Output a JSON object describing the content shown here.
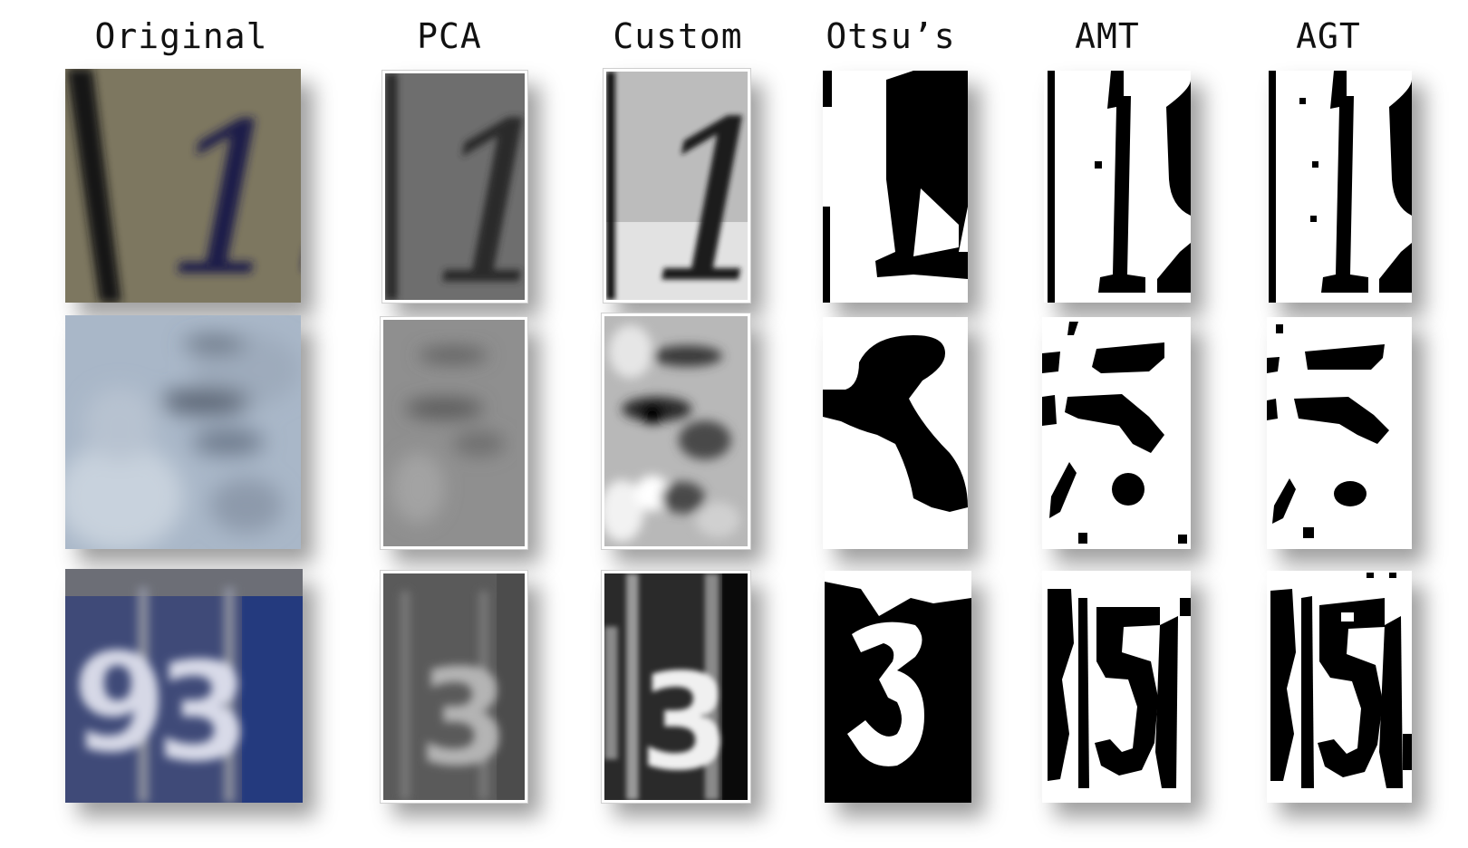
{
  "columns": [
    {
      "key": "original",
      "label": "Original"
    },
    {
      "key": "pca",
      "label": "PCA"
    },
    {
      "key": "custom",
      "label": "Custom"
    },
    {
      "key": "otsu",
      "label": "Otsu’s"
    },
    {
      "key": "amt",
      "label": "AMT"
    },
    {
      "key": "agt",
      "label": "AGT"
    }
  ],
  "rows": [
    {
      "key": "digits-19"
    },
    {
      "key": "digit-5"
    },
    {
      "key": "digits-93"
    }
  ],
  "colors": {
    "background": "#ffffff",
    "header_text": "#111111",
    "orig_row1_bg": "#77705c",
    "orig_row1_ink": "#1e1a4a",
    "orig_row2_bg": "#a9b7c8",
    "orig_row3_bg": "#3f4a78",
    "binary_black": "#000000",
    "binary_white": "#ffffff"
  }
}
